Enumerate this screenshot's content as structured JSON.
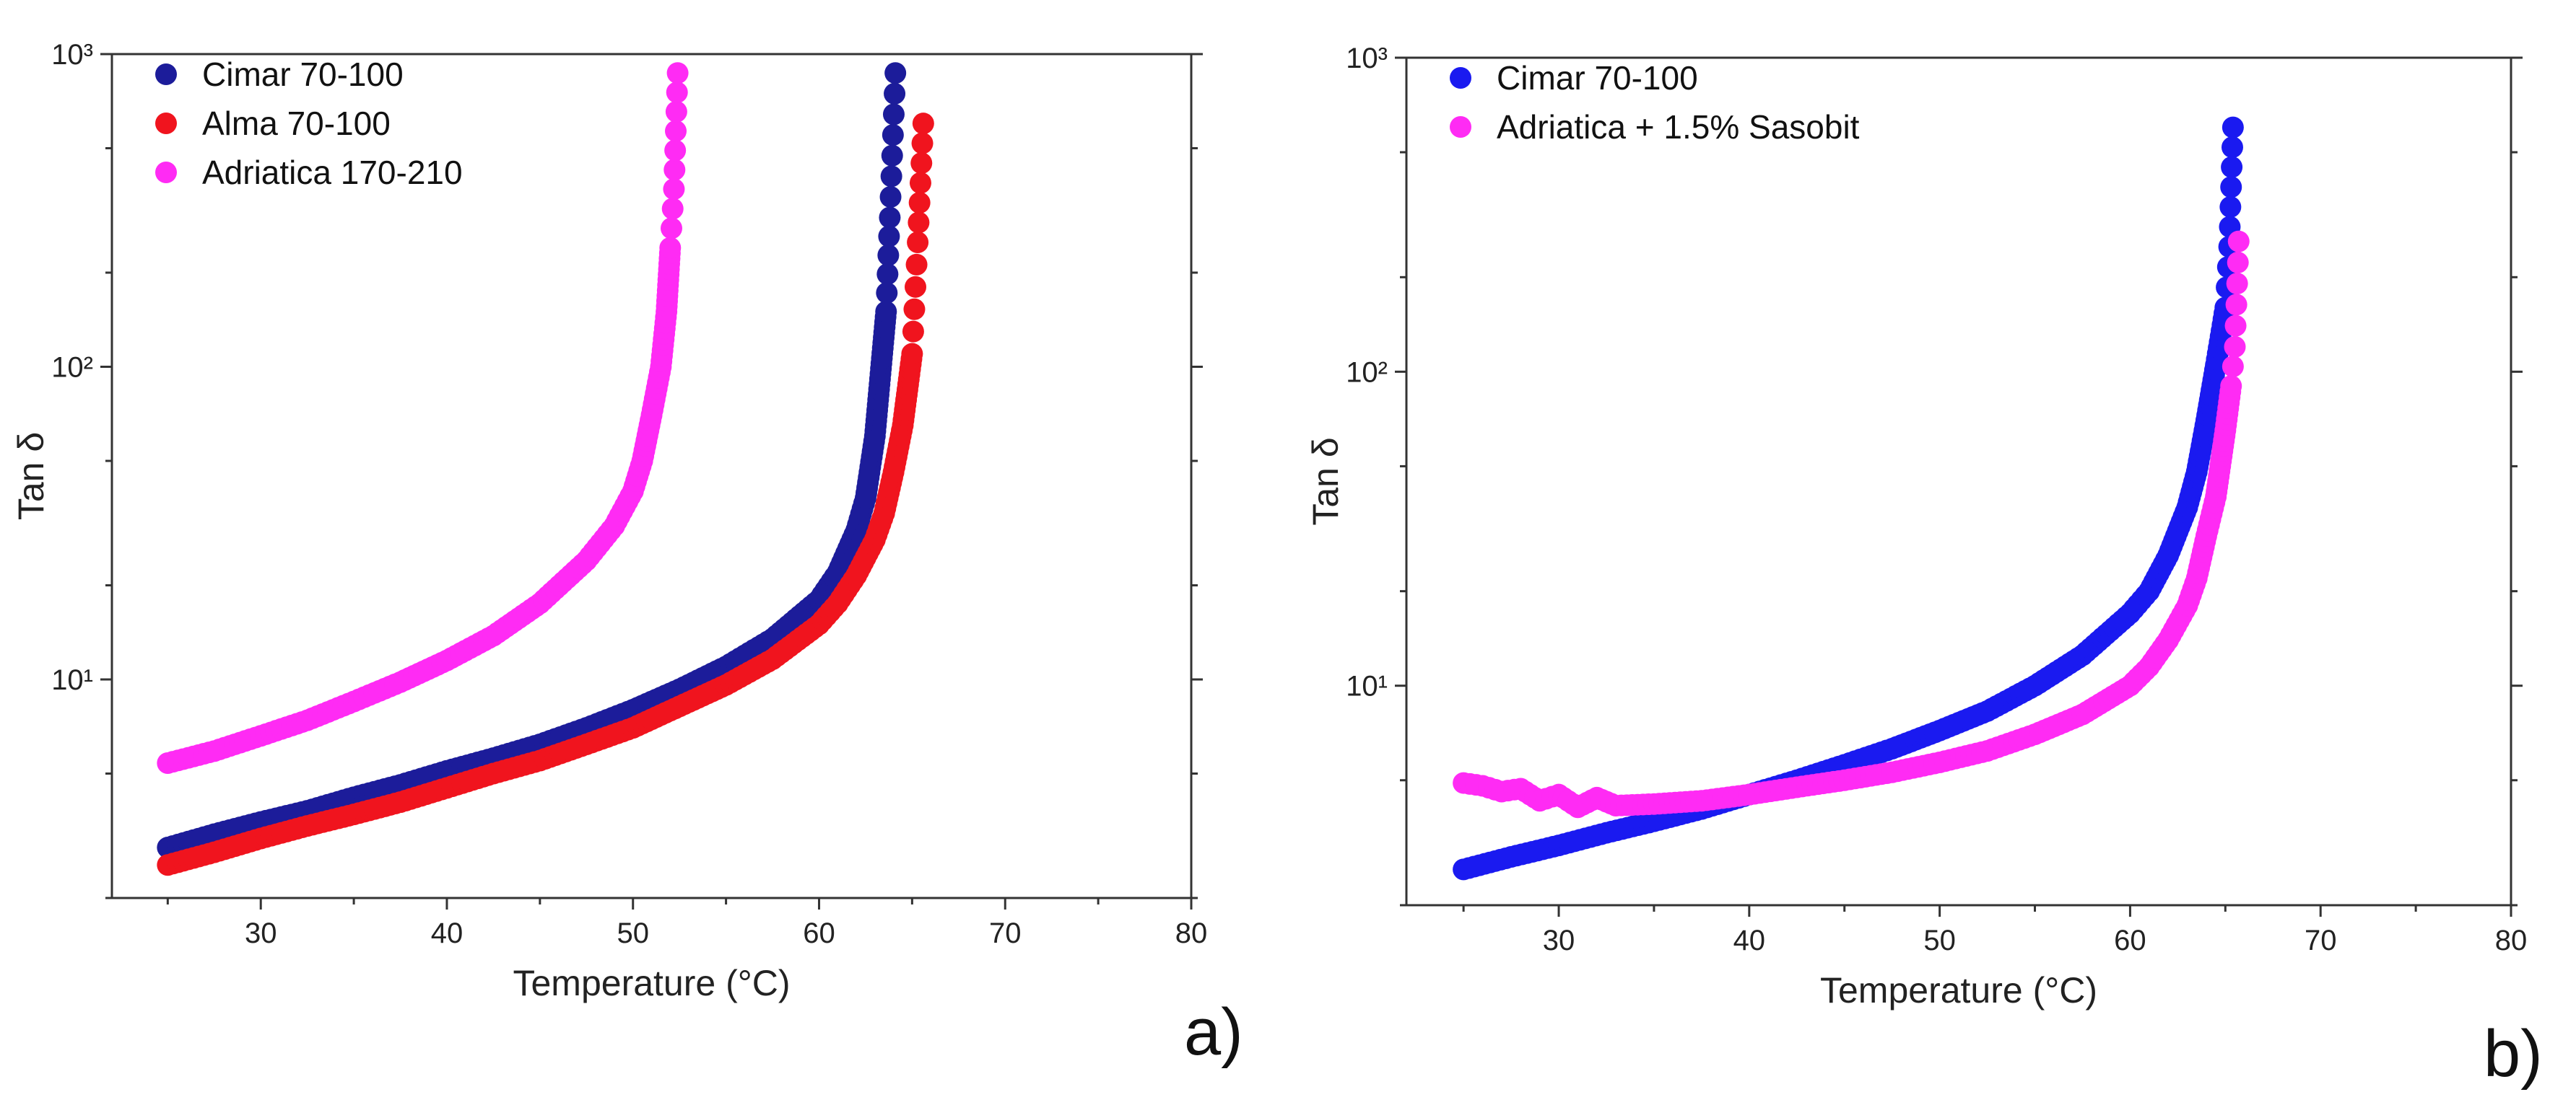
{
  "chart_data": [
    {
      "type": "scatter",
      "panel_label": "a)",
      "xlabel": "Temperature (°C)",
      "ylabel": "Tan δ",
      "xlim": [
        22,
        80
      ],
      "ylim": [
        2,
        1000
      ],
      "yscale": "log",
      "x_ticks": [
        30,
        40,
        50,
        60,
        70,
        80
      ],
      "y_ticks": [
        10,
        100,
        1000
      ],
      "y_tick_labels": [
        "10¹",
        "10²",
        "10³"
      ],
      "grid": false,
      "legend_position": "top-left",
      "series": [
        {
          "name": "Cimar 70-100",
          "color": "#1c1c9a",
          "x": [
            25,
            27.5,
            30,
            32.5,
            35,
            37.5,
            40,
            42.5,
            45,
            47.5,
            50,
            52.5,
            55,
            57.5,
            60,
            61,
            62,
            62.5,
            63,
            63.3,
            63.6,
            63.8,
            64.1
          ],
          "y": [
            2.9,
            3.2,
            3.5,
            3.8,
            4.2,
            4.6,
            5.1,
            5.6,
            6.2,
            7,
            8,
            9.3,
            11,
            13.5,
            18,
            22,
            30,
            38,
            60,
            95,
            150,
            300,
            870
          ]
        },
        {
          "name": "Alma 70-100",
          "color": "#f0141e",
          "x": [
            25,
            27.5,
            30,
            32.5,
            35,
            37.5,
            40,
            42.5,
            45,
            47.5,
            50,
            52.5,
            55,
            57.5,
            60,
            61,
            62,
            63,
            63.5,
            64,
            64.5,
            65,
            65.3,
            65.6
          ],
          "y": [
            2.55,
            2.8,
            3.1,
            3.4,
            3.7,
            4.05,
            4.5,
            5,
            5.5,
            6.2,
            7,
            8.2,
            9.6,
            11.6,
            15,
            17.5,
            21.5,
            28,
            34,
            46,
            65,
            110,
            250,
            600
          ]
        },
        {
          "name": "Adriatica 170-210",
          "color": "#ff2bf4",
          "x": [
            25,
            27.5,
            30,
            32.5,
            35,
            37.5,
            40,
            42.5,
            45,
            47.5,
            49,
            50,
            50.5,
            51,
            51.5,
            51.8,
            52,
            52.2,
            52.4
          ],
          "y": [
            5.4,
            5.9,
            6.6,
            7.4,
            8.5,
            9.8,
            11.5,
            13.8,
            17.5,
            24,
            31,
            40,
            50,
            70,
            100,
            150,
            240,
            370,
            870
          ]
        }
      ]
    },
    {
      "type": "scatter",
      "panel_label": "b)",
      "xlabel": "Temperature (°C)",
      "ylabel": "Tan δ",
      "xlim": [
        22,
        80
      ],
      "ylim": [
        2,
        1000
      ],
      "yscale": "log",
      "x_ticks": [
        30,
        40,
        50,
        60,
        70,
        80
      ],
      "y_ticks": [
        10,
        100,
        1000
      ],
      "y_tick_labels": [
        "10¹",
        "10²",
        "10³"
      ],
      "grid": false,
      "legend_position": "top-left",
      "series": [
        {
          "name": "Cimar 70-100",
          "color": "#1a1af0",
          "x": [
            25,
            27.5,
            30,
            32.5,
            35,
            37.5,
            40,
            42.5,
            45,
            47.5,
            50,
            52.5,
            55,
            57.5,
            60,
            61,
            62,
            63,
            63.5,
            64,
            64.5,
            64.8,
            65,
            65.2,
            65.4
          ],
          "y": [
            2.6,
            2.85,
            3.1,
            3.4,
            3.7,
            4.05,
            4.5,
            5,
            5.6,
            6.3,
            7.2,
            8.3,
            10,
            12.5,
            17,
            20,
            26,
            37,
            48,
            70,
            105,
            135,
            160,
            250,
            600
          ]
        },
        {
          "name": "Adriatica + 1.5% Sasobit",
          "color": "#ff2bf4",
          "x": [
            25,
            26,
            27,
            28,
            29,
            30,
            31,
            32,
            33,
            35,
            37.5,
            40,
            42.5,
            45,
            47.5,
            50,
            52.5,
            55,
            57.5,
            60,
            61,
            62,
            63,
            63.5,
            64,
            64.5,
            65,
            65.3,
            65.5,
            65.7
          ],
          "y": [
            4.9,
            4.8,
            4.6,
            4.7,
            4.3,
            4.5,
            4.1,
            4.4,
            4.15,
            4.2,
            4.3,
            4.5,
            4.75,
            5,
            5.3,
            5.7,
            6.2,
            7,
            8.1,
            10,
            11.5,
            14,
            18,
            22,
            30,
            40,
            65,
            90,
            120,
            260
          ]
        }
      ]
    }
  ]
}
